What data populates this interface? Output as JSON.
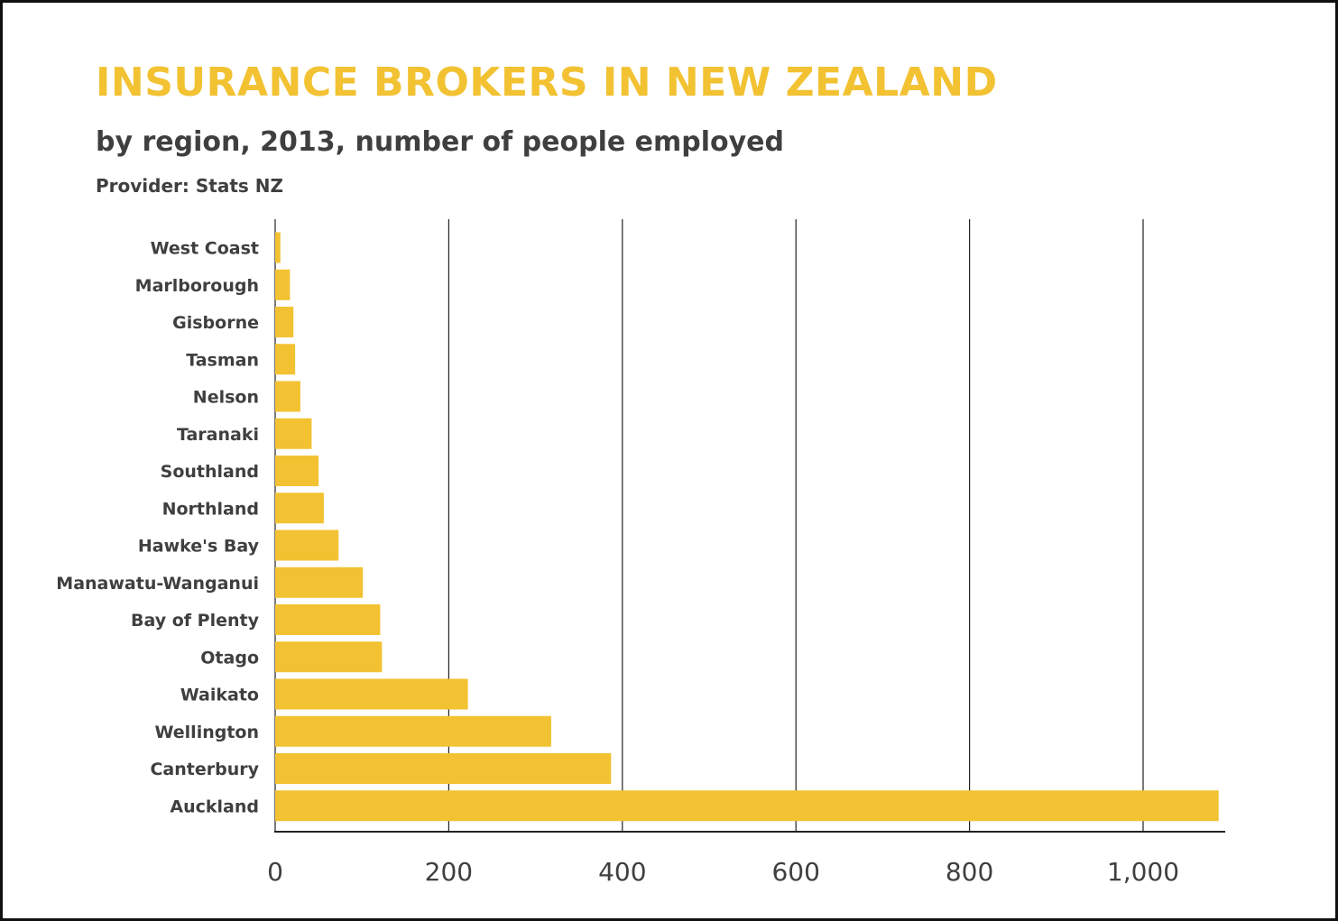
{
  "header": {
    "title": "INSURANCE BROKERS IN NEW ZEALAND",
    "subtitle": "by region, 2013, number of people employed",
    "provider": "Provider: Stats NZ"
  },
  "colors": {
    "accent": "#F2C232",
    "text": "#3f3f3f",
    "bar": "#F2C232",
    "grid": "#222222",
    "border": "#111111"
  },
  "chart_data": {
    "type": "bar",
    "orientation": "horizontal",
    "categories": [
      "West Coast",
      "Marlborough",
      "Gisborne",
      "Tasman",
      "Nelson",
      "Taranaki",
      "Southland",
      "Northland",
      "Hawke's Bay",
      "Manawatu-Wanganui",
      "Bay of Plenty",
      "Otago",
      "Waikato",
      "Wellington",
      "Canterbury",
      "Auckland"
    ],
    "values": [
      6,
      17,
      21,
      23,
      29,
      42,
      50,
      56,
      73,
      101,
      121,
      123,
      222,
      318,
      387,
      1087
    ],
    "title": "INSURANCE BROKERS IN NEW ZEALAND",
    "subtitle": "by region, 2013, number of people employed",
    "xlim": [
      0,
      1090
    ],
    "xticks": [
      0,
      200,
      400,
      600,
      800,
      1000
    ],
    "xtick_labels": [
      "0",
      "200",
      "400",
      "600",
      "800",
      "1,000"
    ],
    "grid": "vertical",
    "legend": "none"
  }
}
